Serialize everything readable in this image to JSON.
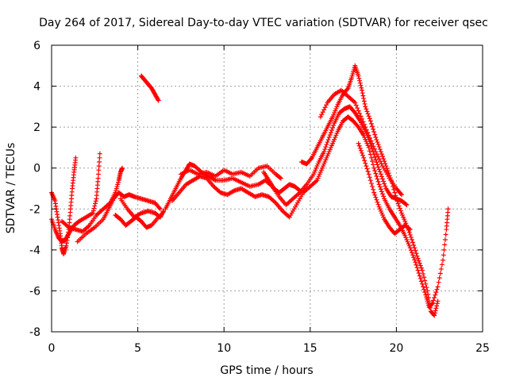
{
  "chart_data": {
    "type": "scatter",
    "title": "Day 264 of 2017, Sidereal Day-to-day VTEC variation (SDTVAR) for receiver qsec",
    "xlabel": "GPS time / hours",
    "ylabel": "SDTVAR / TECUs",
    "xlim": [
      0,
      25
    ],
    "ylim": [
      -8,
      6
    ],
    "xticks": [
      "0",
      "5",
      "10",
      "15",
      "20",
      "25"
    ],
    "yticks": [
      "-8",
      "-6",
      "-4",
      "-2",
      "0",
      "2",
      "4",
      "6"
    ],
    "grid": true,
    "marker": "plus",
    "color": "#ff0000",
    "series": [
      {
        "points": [
          [
            0.0,
            -1.2
          ],
          [
            0.2,
            -1.6
          ],
          [
            0.35,
            -2.4
          ],
          [
            0.5,
            -3.2
          ],
          [
            0.6,
            -3.9
          ],
          [
            0.7,
            -4.2
          ],
          [
            0.85,
            -3.8
          ],
          [
            1.0,
            -3.0
          ],
          [
            1.1,
            -2.0
          ],
          [
            1.2,
            -1.0
          ],
          [
            1.3,
            -0.2
          ],
          [
            1.4,
            0.5
          ]
        ]
      },
      {
        "points": [
          [
            0.0,
            -2.5
          ],
          [
            0.2,
            -3.0
          ],
          [
            0.4,
            -3.4
          ],
          [
            0.6,
            -3.6
          ],
          [
            0.8,
            -3.5
          ],
          [
            1.0,
            -3.2
          ],
          [
            1.3,
            -2.8
          ],
          [
            1.6,
            -2.6
          ],
          [
            2.0,
            -2.4
          ],
          [
            2.4,
            -2.2
          ],
          [
            2.6,
            -1.5
          ],
          [
            2.7,
            -0.5
          ],
          [
            2.8,
            0.7
          ]
        ]
      },
      {
        "points": [
          [
            0.6,
            -2.6
          ],
          [
            1.0,
            -2.9
          ],
          [
            1.4,
            -3.0
          ],
          [
            1.8,
            -3.1
          ],
          [
            2.2,
            -2.8
          ],
          [
            2.6,
            -2.3
          ],
          [
            3.0,
            -2.0
          ],
          [
            3.4,
            -1.7
          ],
          [
            3.7,
            -1.2
          ],
          [
            3.9,
            -0.6
          ],
          [
            4.0,
            -0.2
          ],
          [
            4.1,
            0.0
          ]
        ]
      },
      {
        "points": [
          [
            1.5,
            -3.6
          ],
          [
            2.0,
            -3.2
          ],
          [
            2.5,
            -2.9
          ],
          [
            3.0,
            -2.5
          ],
          [
            3.3,
            -2.0
          ],
          [
            3.6,
            -1.5
          ],
          [
            3.9,
            -1.2
          ],
          [
            4.2,
            -1.4
          ],
          [
            4.5,
            -1.3
          ],
          [
            4.8,
            -1.4
          ],
          [
            5.2,
            -1.5
          ],
          [
            5.6,
            -1.6
          ],
          [
            6.0,
            -1.7
          ],
          [
            6.3,
            -2.0
          ]
        ]
      },
      {
        "points": [
          [
            4.0,
            -1.5
          ],
          [
            4.4,
            -2.0
          ],
          [
            4.8,
            -2.4
          ],
          [
            5.2,
            -2.2
          ],
          [
            5.6,
            -2.1
          ],
          [
            6.0,
            -2.2
          ],
          [
            6.3,
            -2.4
          ],
          [
            6.5,
            -2.1
          ]
        ]
      },
      {
        "points": [
          [
            3.7,
            -2.3
          ],
          [
            4.0,
            -2.5
          ],
          [
            4.3,
            -2.8
          ],
          [
            4.6,
            -2.6
          ],
          [
            4.9,
            -2.4
          ],
          [
            5.2,
            -2.6
          ],
          [
            5.5,
            -2.9
          ],
          [
            5.8,
            -2.8
          ],
          [
            6.2,
            -2.4
          ]
        ]
      },
      {
        "points": [
          [
            5.2,
            4.5
          ],
          [
            5.4,
            4.3
          ],
          [
            5.6,
            4.1
          ],
          [
            5.8,
            3.9
          ],
          [
            6.0,
            3.6
          ],
          [
            6.2,
            3.3
          ]
        ]
      },
      {
        "points": [
          [
            6.6,
            -2.0
          ],
          [
            6.9,
            -1.5
          ],
          [
            7.2,
            -1.0
          ],
          [
            7.5,
            -0.5
          ],
          [
            7.8,
            -0.1
          ],
          [
            8.0,
            0.2
          ],
          [
            8.3,
            0.1
          ],
          [
            8.7,
            -0.2
          ],
          [
            9.1,
            -0.4
          ],
          [
            9.5,
            -0.6
          ],
          [
            10.0,
            -0.6
          ],
          [
            10.5,
            -0.5
          ],
          [
            11.0,
            -0.7
          ],
          [
            11.5,
            -0.9
          ],
          [
            12.0,
            -0.8
          ],
          [
            12.4,
            -0.6
          ],
          [
            12.8,
            -0.9
          ],
          [
            13.2,
            -1.4
          ],
          [
            13.6,
            -1.8
          ],
          [
            14.0,
            -1.5
          ],
          [
            14.4,
            -1.2
          ],
          [
            14.8,
            -0.8
          ],
          [
            15.2,
            -0.3
          ],
          [
            15.5,
            0.3
          ],
          [
            15.8,
            0.8
          ],
          [
            16.1,
            1.5
          ],
          [
            16.4,
            2.2
          ],
          [
            16.7,
            2.7
          ],
          [
            17.0,
            2.9
          ],
          [
            17.3,
            3.0
          ],
          [
            17.6,
            2.7
          ],
          [
            17.9,
            2.3
          ],
          [
            18.2,
            1.8
          ],
          [
            18.5,
            1.2
          ],
          [
            18.8,
            0.4
          ],
          [
            19.1,
            -0.3
          ],
          [
            19.4,
            -1.0
          ],
          [
            19.7,
            -1.4
          ],
          [
            20.0,
            -1.5
          ],
          [
            20.3,
            -1.6
          ],
          [
            20.6,
            -1.8
          ]
        ]
      },
      {
        "points": [
          [
            7.0,
            -1.6
          ],
          [
            7.4,
            -1.2
          ],
          [
            7.8,
            -0.8
          ],
          [
            8.2,
            -0.6
          ],
          [
            8.6,
            -0.4
          ],
          [
            9.0,
            -0.5
          ],
          [
            9.4,
            -0.9
          ],
          [
            9.8,
            -1.2
          ],
          [
            10.2,
            -1.3
          ],
          [
            10.6,
            -1.1
          ],
          [
            11.0,
            -1.0
          ],
          [
            11.4,
            -1.2
          ],
          [
            11.8,
            -1.4
          ],
          [
            12.2,
            -1.3
          ],
          [
            12.6,
            -1.4
          ],
          [
            13.0,
            -1.7
          ],
          [
            13.4,
            -2.1
          ],
          [
            13.8,
            -2.4
          ],
          [
            14.2,
            -1.8
          ],
          [
            14.6,
            -1.2
          ],
          [
            15.0,
            -0.9
          ],
          [
            15.4,
            -0.6
          ],
          [
            15.7,
            0.0
          ],
          [
            16.0,
            0.6
          ],
          [
            16.3,
            1.2
          ],
          [
            16.6,
            1.8
          ],
          [
            16.9,
            2.3
          ],
          [
            17.2,
            2.5
          ],
          [
            17.5,
            2.3
          ],
          [
            17.8,
            2.0
          ],
          [
            18.1,
            1.6
          ],
          [
            18.4,
            1.0
          ],
          [
            18.7,
            0.0
          ],
          [
            19.0,
            -0.8
          ],
          [
            19.3,
            -1.5
          ],
          [
            19.6,
            -2.0
          ],
          [
            19.9,
            -2.4
          ],
          [
            20.2,
            -2.8
          ],
          [
            20.5,
            -3.3
          ],
          [
            20.8,
            -3.9
          ],
          [
            21.1,
            -4.6
          ],
          [
            21.4,
            -5.4
          ],
          [
            21.7,
            -6.2
          ],
          [
            21.9,
            -6.8
          ],
          [
            22.1,
            -6.6
          ],
          [
            22.4,
            -5.8
          ],
          [
            22.7,
            -4.5
          ],
          [
            22.9,
            -3.0
          ],
          [
            23.0,
            -2.0
          ]
        ]
      },
      {
        "points": [
          [
            7.5,
            -0.3
          ],
          [
            8.0,
            -0.1
          ],
          [
            8.5,
            -0.3
          ],
          [
            9.0,
            -0.2
          ],
          [
            9.5,
            -0.4
          ],
          [
            10.0,
            -0.1
          ],
          [
            10.5,
            -0.3
          ],
          [
            11.0,
            -0.2
          ],
          [
            11.5,
            -0.4
          ],
          [
            12.0,
            0.0
          ],
          [
            12.5,
            0.1
          ],
          [
            13.0,
            -0.3
          ],
          [
            13.3,
            -0.5
          ]
        ]
      },
      {
        "points": [
          [
            14.5,
            0.3
          ],
          [
            14.8,
            0.2
          ],
          [
            15.1,
            0.5
          ],
          [
            15.4,
            1.0
          ],
          [
            15.7,
            1.5
          ],
          [
            16.0,
            2.0
          ],
          [
            16.3,
            2.5
          ],
          [
            16.6,
            3.1
          ],
          [
            16.9,
            3.6
          ],
          [
            17.2,
            3.9
          ],
          [
            17.4,
            4.4
          ],
          [
            17.6,
            5.0
          ],
          [
            17.8,
            4.5
          ],
          [
            18.0,
            3.8
          ],
          [
            18.2,
            3.0
          ],
          [
            18.5,
            2.3
          ],
          [
            18.8,
            1.5
          ],
          [
            19.1,
            0.8
          ],
          [
            19.4,
            0.1
          ],
          [
            19.7,
            -0.6
          ],
          [
            20.0,
            -1.5
          ],
          [
            20.3,
            -2.2
          ],
          [
            20.6,
            -2.8
          ],
          [
            20.9,
            -3.5
          ],
          [
            21.2,
            -4.3
          ],
          [
            21.5,
            -5.0
          ],
          [
            21.8,
            -6.0
          ],
          [
            22.0,
            -7.0
          ],
          [
            22.2,
            -7.2
          ],
          [
            22.4,
            -6.5
          ]
        ]
      },
      {
        "points": [
          [
            15.6,
            2.5
          ],
          [
            16.0,
            3.2
          ],
          [
            16.4,
            3.6
          ],
          [
            16.8,
            3.8
          ],
          [
            17.2,
            3.5
          ],
          [
            17.6,
            3.2
          ],
          [
            18.0,
            2.4
          ],
          [
            18.4,
            1.6
          ],
          [
            18.8,
            0.8
          ],
          [
            19.2,
            0.1
          ],
          [
            19.6,
            -0.5
          ],
          [
            20.0,
            -1.0
          ],
          [
            20.3,
            -1.3
          ]
        ]
      },
      {
        "points": [
          [
            17.8,
            1.2
          ],
          [
            18.1,
            0.5
          ],
          [
            18.4,
            -0.3
          ],
          [
            18.7,
            -1.2
          ],
          [
            19.0,
            -1.9
          ],
          [
            19.3,
            -2.5
          ],
          [
            19.6,
            -2.9
          ],
          [
            19.9,
            -3.2
          ],
          [
            20.2,
            -3.0
          ],
          [
            20.5,
            -2.8
          ],
          [
            20.8,
            -3.0
          ]
        ]
      },
      {
        "points": [
          [
            12.3,
            -0.2
          ],
          [
            12.6,
            -0.6
          ],
          [
            12.9,
            -1.0
          ],
          [
            13.2,
            -1.2
          ],
          [
            13.5,
            -1.0
          ],
          [
            13.8,
            -0.8
          ],
          [
            14.1,
            -0.9
          ],
          [
            14.4,
            -1.1
          ]
        ]
      }
    ]
  }
}
